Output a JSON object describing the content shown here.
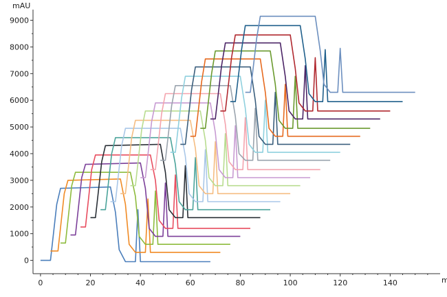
{
  "chart_data": {
    "type": "line",
    "title": "",
    "ylabel": "mAU",
    "xlabel": "m",
    "xlim": [
      -3,
      160
    ],
    "ylim": [
      -500,
      9400
    ],
    "xticks": [
      0,
      20,
      40,
      60,
      80,
      100,
      120,
      140
    ],
    "yticks": [
      0,
      1000,
      2000,
      3000,
      4000,
      5000,
      6000,
      7000,
      8000,
      9000
    ],
    "grid": false,
    "legend": "none",
    "series": [
      {
        "color": "#4a7ebb",
        "values": [
          [
            0,
            0
          ],
          [
            4,
            0
          ],
          [
            6.5,
            2100
          ],
          [
            8,
            2700
          ],
          [
            28,
            2750
          ],
          [
            30,
            1800
          ],
          [
            31.5,
            400
          ],
          [
            34,
            -50
          ],
          [
            38,
            -50
          ],
          [
            39,
            1900
          ],
          [
            40,
            -50
          ],
          [
            68,
            -50
          ]
        ]
      },
      {
        "color": "#f08a24",
        "values": [
          [
            4,
            350
          ],
          [
            7,
            350
          ],
          [
            9.5,
            2500
          ],
          [
            11,
            3000
          ],
          [
            32,
            3050
          ],
          [
            34,
            2100
          ],
          [
            35.5,
            600
          ],
          [
            38,
            300
          ],
          [
            42,
            300
          ],
          [
            43,
            2300
          ],
          [
            44,
            300
          ],
          [
            72,
            300
          ]
        ]
      },
      {
        "color": "#8dbb3c",
        "values": [
          [
            8,
            650
          ],
          [
            10,
            650
          ],
          [
            12.5,
            2800
          ],
          [
            14,
            3300
          ],
          [
            36,
            3300
          ],
          [
            38,
            2400
          ],
          [
            39.5,
            900
          ],
          [
            42,
            600
          ],
          [
            45,
            600
          ],
          [
            46,
            2600
          ],
          [
            47,
            600
          ],
          [
            76,
            600
          ]
        ]
      },
      {
        "color": "#7b3f99",
        "values": [
          [
            12,
            950
          ],
          [
            14,
            950
          ],
          [
            16.5,
            3100
          ],
          [
            18,
            3600
          ],
          [
            40,
            3650
          ],
          [
            42,
            2700
          ],
          [
            43.5,
            1200
          ],
          [
            46,
            900
          ],
          [
            49,
            900
          ],
          [
            50,
            2900
          ],
          [
            51,
            900
          ],
          [
            80,
            900
          ]
        ]
      },
      {
        "color": "#e84c5e",
        "values": [
          [
            16,
            1250
          ],
          [
            18,
            1250
          ],
          [
            20.5,
            3400
          ],
          [
            22,
            3950
          ],
          [
            44,
            3950
          ],
          [
            46,
            3000
          ],
          [
            47.5,
            1500
          ],
          [
            50,
            1200
          ],
          [
            53,
            1200
          ],
          [
            54,
            3200
          ],
          [
            55,
            1200
          ],
          [
            84,
            1200
          ]
        ]
      },
      {
        "color": "#2a2f36",
        "values": [
          [
            20,
            1600
          ],
          [
            22,
            1600
          ],
          [
            24.5,
            3700
          ],
          [
            26,
            4300
          ],
          [
            48,
            4350
          ],
          [
            50,
            3300
          ],
          [
            51.5,
            1900
          ],
          [
            54,
            1600
          ],
          [
            57,
            1600
          ],
          [
            58,
            3550
          ],
          [
            59,
            1600
          ],
          [
            88,
            1600
          ]
        ]
      },
      {
        "color": "#4aa39a",
        "values": [
          [
            24,
            1900
          ],
          [
            26,
            1900
          ],
          [
            28.5,
            4000
          ],
          [
            30,
            4600
          ],
          [
            52,
            4600
          ],
          [
            54,
            3600
          ],
          [
            55.5,
            2200
          ],
          [
            58,
            1900
          ],
          [
            61,
            1900
          ],
          [
            62,
            3850
          ],
          [
            63,
            1900
          ],
          [
            92,
            1900
          ]
        ]
      },
      {
        "color": "#a9c7e8",
        "values": [
          [
            28,
            2200
          ],
          [
            30,
            2200
          ],
          [
            32.5,
            4300
          ],
          [
            34,
            4950
          ],
          [
            56,
            4950
          ],
          [
            58,
            3900
          ],
          [
            59.5,
            2500
          ],
          [
            62,
            2200
          ],
          [
            65,
            2200
          ],
          [
            66,
            4150
          ],
          [
            67,
            2200
          ],
          [
            96,
            2200
          ]
        ]
      },
      {
        "color": "#f5bd82",
        "values": [
          [
            32,
            2500
          ],
          [
            34,
            2500
          ],
          [
            36.5,
            4600
          ],
          [
            38,
            5250
          ],
          [
            60,
            5250
          ],
          [
            62,
            4200
          ],
          [
            63.5,
            2800
          ],
          [
            66,
            2500
          ],
          [
            69,
            2500
          ],
          [
            70,
            4450
          ],
          [
            71,
            2500
          ],
          [
            100,
            2500
          ]
        ]
      },
      {
        "color": "#b8dc8f",
        "values": [
          [
            36,
            2800
          ],
          [
            38,
            2800
          ],
          [
            40.5,
            4900
          ],
          [
            42,
            5600
          ],
          [
            64,
            5600
          ],
          [
            66,
            4500
          ],
          [
            67.5,
            3100
          ],
          [
            70,
            2800
          ],
          [
            73,
            2800
          ],
          [
            74,
            4750
          ],
          [
            75,
            2800
          ],
          [
            104,
            2800
          ]
        ]
      },
      {
        "color": "#c79ad2",
        "values": [
          [
            40,
            3100
          ],
          [
            42,
            3100
          ],
          [
            44.5,
            5200
          ],
          [
            46,
            5900
          ],
          [
            68,
            5900
          ],
          [
            70,
            4800
          ],
          [
            71.5,
            3400
          ],
          [
            74,
            3100
          ],
          [
            77,
            3100
          ],
          [
            78,
            5050
          ],
          [
            79,
            3100
          ],
          [
            108,
            3100
          ]
        ]
      },
      {
        "color": "#f4a3ad",
        "values": [
          [
            44,
            3400
          ],
          [
            46,
            3400
          ],
          [
            48.5,
            5500
          ],
          [
            50,
            6250
          ],
          [
            72,
            6250
          ],
          [
            74,
            5100
          ],
          [
            75.5,
            3700
          ],
          [
            78,
            3400
          ],
          [
            81,
            3400
          ],
          [
            82,
            5350
          ],
          [
            83,
            3400
          ],
          [
            112,
            3400
          ]
        ]
      },
      {
        "color": "#9aa3ad",
        "values": [
          [
            48,
            3750
          ],
          [
            50,
            3750
          ],
          [
            52.5,
            5800
          ],
          [
            54,
            6550
          ],
          [
            76,
            6550
          ],
          [
            78,
            5400
          ],
          [
            79.5,
            4000
          ],
          [
            82,
            3750
          ],
          [
            85,
            3750
          ],
          [
            86,
            5700
          ],
          [
            87,
            3750
          ],
          [
            116,
            3750
          ]
        ]
      },
      {
        "color": "#8fd0de",
        "values": [
          [
            52,
            4050
          ],
          [
            54,
            4050
          ],
          [
            56.5,
            6100
          ],
          [
            58,
            6900
          ],
          [
            80,
            6900
          ],
          [
            82,
            5700
          ],
          [
            83.5,
            4350
          ],
          [
            86,
            4050
          ],
          [
            89,
            4050
          ],
          [
            90,
            6000
          ],
          [
            91,
            4050
          ],
          [
            120,
            4050
          ]
        ]
      },
      {
        "color": "#3b5f7d",
        "values": [
          [
            56,
            4350
          ],
          [
            58,
            4350
          ],
          [
            60.5,
            6400
          ],
          [
            62,
            7250
          ],
          [
            84,
            7250
          ],
          [
            86,
            6000
          ],
          [
            87.5,
            4650
          ],
          [
            90,
            4350
          ],
          [
            93,
            4350
          ],
          [
            94,
            6300
          ],
          [
            95,
            4350
          ],
          [
            124,
            4350
          ]
        ]
      },
      {
        "color": "#e66a1f",
        "values": [
          [
            60,
            4650
          ],
          [
            62,
            4650
          ],
          [
            64.5,
            6700
          ],
          [
            66,
            7550
          ],
          [
            88,
            7550
          ],
          [
            90,
            6300
          ],
          [
            91.5,
            4950
          ],
          [
            94,
            4650
          ],
          [
            97,
            4650
          ],
          [
            98,
            6600
          ],
          [
            99,
            4650
          ],
          [
            128,
            4650
          ]
        ]
      },
      {
        "color": "#6a9a2e",
        "values": [
          [
            64,
            4950
          ],
          [
            66,
            4950
          ],
          [
            68.5,
            7000
          ],
          [
            70,
            7850
          ],
          [
            92,
            7850
          ],
          [
            94,
            6600
          ],
          [
            95.5,
            5250
          ],
          [
            98,
            4950
          ],
          [
            101,
            4950
          ],
          [
            102,
            6900
          ],
          [
            103,
            4950
          ],
          [
            132,
            4950
          ]
        ]
      },
      {
        "color": "#4b2466",
        "values": [
          [
            68,
            5300
          ],
          [
            70,
            5300
          ],
          [
            72.5,
            7300
          ],
          [
            74,
            8150
          ],
          [
            96,
            8150
          ],
          [
            98,
            6900
          ],
          [
            99.5,
            5600
          ],
          [
            102,
            5300
          ],
          [
            105,
            5300
          ],
          [
            106,
            7300
          ],
          [
            107,
            5300
          ],
          [
            136,
            5300
          ]
        ]
      },
      {
        "color": "#b0282f",
        "values": [
          [
            72,
            5600
          ],
          [
            74,
            5600
          ],
          [
            76.5,
            7600
          ],
          [
            78,
            8450
          ],
          [
            100,
            8450
          ],
          [
            102,
            7200
          ],
          [
            103.5,
            5900
          ],
          [
            106,
            5600
          ],
          [
            109,
            5600
          ],
          [
            110,
            7600
          ],
          [
            111,
            5600
          ],
          [
            140,
            5600
          ]
        ]
      },
      {
        "color": "#1f5f8b",
        "values": [
          [
            76,
            5950
          ],
          [
            78,
            5950
          ],
          [
            80.5,
            7900
          ],
          [
            82,
            8800
          ],
          [
            104,
            8800
          ],
          [
            106,
            7550
          ],
          [
            107.5,
            6250
          ],
          [
            110,
            5950
          ],
          [
            113,
            5950
          ],
          [
            114,
            7900
          ],
          [
            115,
            5950
          ],
          [
            145,
            5950
          ]
        ]
      },
      {
        "color": "#6c8fbf",
        "values": [
          [
            82,
            6300
          ],
          [
            84,
            6300
          ],
          [
            86.5,
            8300
          ],
          [
            88,
            9150
          ],
          [
            110,
            9150
          ],
          [
            112,
            7850
          ],
          [
            113.5,
            6600
          ],
          [
            116,
            6300
          ],
          [
            119,
            6300
          ],
          [
            120,
            7950
          ],
          [
            121,
            6300
          ],
          [
            150,
            6300
          ]
        ]
      }
    ]
  }
}
